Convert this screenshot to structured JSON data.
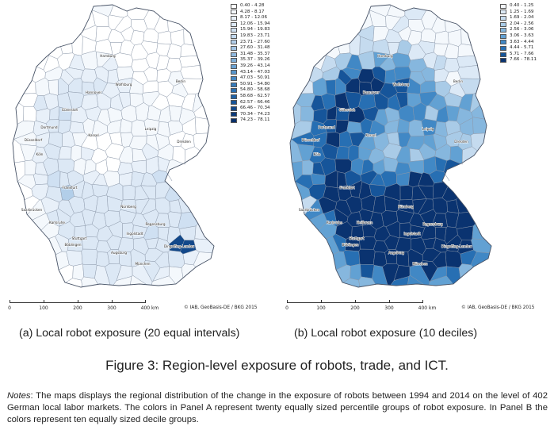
{
  "map_a": {
    "legend": [
      {
        "label": "0.40 - 4.28",
        "color": "#ffffff"
      },
      {
        "label": "4.28 - 8.17",
        "color": "#f4f8fc"
      },
      {
        "label": "8.17 - 12.06",
        "color": "#e8f0f9"
      },
      {
        "label": "12.06 - 15.94",
        "color": "#dce8f5"
      },
      {
        "label": "15.94 - 19.83",
        "color": "#cfe0f2"
      },
      {
        "label": "19.83 - 23.71",
        "color": "#c2d8ee"
      },
      {
        "label": "23.71 - 27.60",
        "color": "#b2cee9"
      },
      {
        "label": "27.60 - 31.48",
        "color": "#a2c4e4"
      },
      {
        "label": "31.48 - 35.37",
        "color": "#90b9df"
      },
      {
        "label": "35.37 - 39.26",
        "color": "#7eaed9"
      },
      {
        "label": "39.26 - 43.14",
        "color": "#6aa2d3"
      },
      {
        "label": "43.14 - 47.03",
        "color": "#5796cc"
      },
      {
        "label": "47.03 - 50.91",
        "color": "#4689c4"
      },
      {
        "label": "50.91 - 54.80",
        "color": "#377cbb"
      },
      {
        "label": "54.80 - 58.68",
        "color": "#2a6fb1"
      },
      {
        "label": "58.68 - 62.57",
        "color": "#2062a6"
      },
      {
        "label": "62.57 - 66.46",
        "color": "#185598"
      },
      {
        "label": "66.46 - 70.34",
        "color": "#12488a"
      },
      {
        "label": "70.34 - 74.23",
        "color": "#0c3b7b"
      },
      {
        "label": "74.23 - 78.11",
        "color": "#082f6a"
      }
    ],
    "city_labels": [
      "Hamburg",
      "Hannover",
      "Wolfsburg",
      "Berlin",
      "Gütersloh",
      "Düsseldorf",
      "Dortmund",
      "Köln",
      "Kassel",
      "Leipzig",
      "Dresden",
      "Frankfurt",
      "Saarbrücken",
      "Karlsruhe",
      "Stuttgart",
      "Nürnberg",
      "Regensburg",
      "Ingolstadt",
      "Dingolfing-Landau",
      "Augsburg",
      "Böblingen",
      "München"
    ]
  },
  "map_b": {
    "legend": [
      {
        "label": "0.40 - 1.25",
        "color": "#f4f8fc"
      },
      {
        "label": "1.25 - 1.69",
        "color": "#dce9f6"
      },
      {
        "label": "1.69 - 2.04",
        "color": "#c5dbef"
      },
      {
        "label": "2.04 - 2.56",
        "color": "#a9cbe7"
      },
      {
        "label": "2.56 - 3.06",
        "color": "#86b7de"
      },
      {
        "label": "3.06 - 3.63",
        "color": "#62a1d3"
      },
      {
        "label": "3.63 - 4.44",
        "color": "#4188c5"
      },
      {
        "label": "4.44 - 5.71",
        "color": "#276fb3"
      },
      {
        "label": "5.71 - 7.66",
        "color": "#16559a"
      },
      {
        "label": "7.66 - 78.11",
        "color": "#0a3370"
      }
    ],
    "city_labels": [
      "Hamburg",
      "Hannover",
      "Wolfsburg",
      "Berlin",
      "Gütersloh",
      "Düsseldorf",
      "Dortmund",
      "Köln",
      "Kassel",
      "Leipzig",
      "Dresden",
      "Frankfurt",
      "Saarbrücken",
      "Karlsruhe",
      "Heilbronn",
      "Stuttgart",
      "Nürnberg",
      "Regensburg",
      "Ingolstadt",
      "Dingolfing-Landau",
      "Augsburg",
      "Böblingen",
      "München"
    ]
  },
  "scale": {
    "ticks": [
      "0",
      "100",
      "200",
      "300",
      "400 km"
    ]
  },
  "copyright": "© IAB, GeoBasis-DE / BKG 2015",
  "captions": {
    "a": "(a) Local robot exposure (20 equal intervals)",
    "b": "(b) Local robot exposure (10 deciles)"
  },
  "figure_title": "Figure 3: Region-level exposure of robots, trade, and ICT.",
  "notes": {
    "prefix": "Notes",
    "text": ": The maps displays the regional distribution of the change in the exposure of robots between 1994 and 2014 on the level of 402 German local labor markets. The colors in Panel A represent twenty equally sized percentile groups of robot exposure. In Panel B the colors represent ten equally sized decile groups."
  }
}
